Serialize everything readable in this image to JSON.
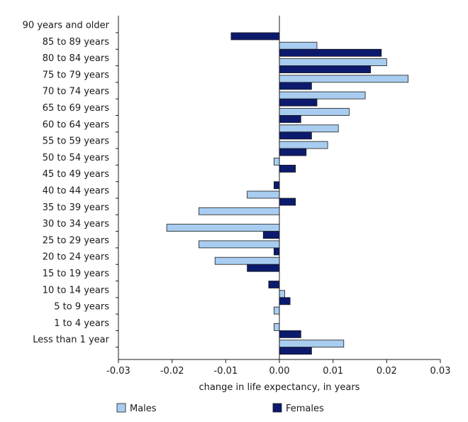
{
  "chart_data": {
    "type": "bar",
    "orientation": "horizontal",
    "categories": [
      "90 years and older",
      "85 to 89 years",
      "80 to 84 years",
      "75 to 79 years",
      "70 to 74 years",
      "65 to 69 years",
      "60 to 64 years",
      "55 to 59 years",
      "50 to 54 years",
      "45 to 49 years",
      "40 to 44 years",
      "35 to 39 years",
      "30 to 34 years",
      "25 to 29 years",
      "20 to 24 years",
      "15 to 19 years",
      "10 to 14 years",
      "5 to 9 years",
      "1 to 4 years",
      "Less than 1 year"
    ],
    "series": [
      {
        "name": "Males",
        "color": "#a8cdf0",
        "values": [
          0,
          0.007,
          0.02,
          0.024,
          0.016,
          0.013,
          0.011,
          0.009,
          -0.001,
          0,
          -0.006,
          -0.015,
          -0.021,
          -0.015,
          -0.012,
          0,
          0.001,
          -0.001,
          -0.001,
          0.012
        ]
      },
      {
        "name": "Females",
        "color": "#0c1a6e",
        "values": [
          -0.009,
          0.019,
          0.017,
          0.006,
          0.007,
          0.004,
          0.006,
          0.005,
          0.003,
          -0.001,
          0.003,
          0,
          -0.003,
          -0.001,
          -0.006,
          -0.002,
          0.002,
          0,
          0.004,
          0.006
        ]
      }
    ],
    "xlim": [
      -0.03,
      0.03
    ],
    "x_ticks": [
      -0.03,
      -0.02,
      -0.01,
      0.0,
      0.01,
      0.02,
      0.03
    ],
    "x_tick_labels": [
      "-0.03",
      "-0.02",
      "-0.01",
      "0.00",
      "0.01",
      "0.02",
      "0.03"
    ],
    "xlabel": "change in life expectancy, in years",
    "ylabel": "",
    "title": "",
    "grid": false,
    "legend": {
      "placement": "bottom",
      "items": [
        "Males",
        "Females"
      ]
    }
  }
}
